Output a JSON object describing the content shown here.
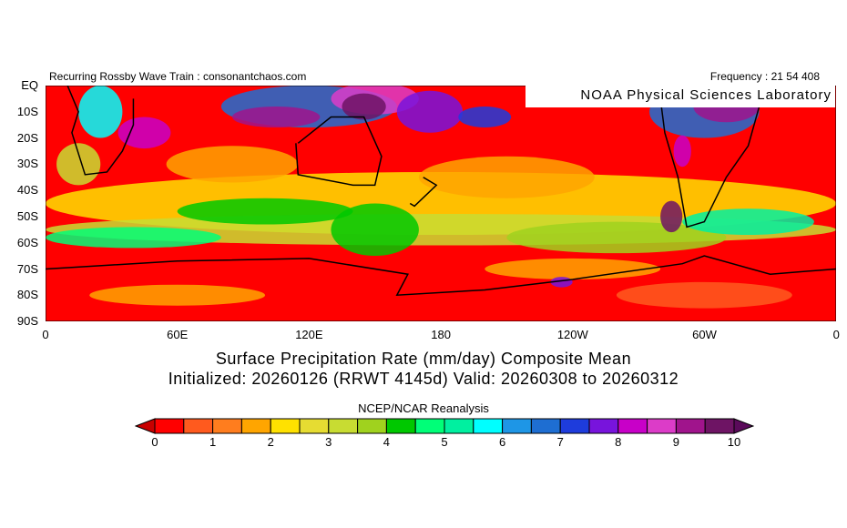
{
  "header": {
    "left": "Recurring Rossby Wave Train : consonantchaos.com",
    "right": "Frequency : 21 54 408"
  },
  "credit": "NOAA Physical Sciences Laboratory",
  "map": {
    "lat_ticks": [
      "EQ",
      "10S",
      "20S",
      "30S",
      "40S",
      "50S",
      "60S",
      "70S",
      "80S",
      "90S"
    ],
    "lon_ticks": [
      "0",
      "60E",
      "120E",
      "180",
      "120W",
      "60W",
      "0"
    ],
    "lat_range": [
      0,
      -90
    ],
    "lon_range": [
      0,
      360
    ],
    "background_color": "#ff0000"
  },
  "title": {
    "line1": "Surface Precipitation Rate (mm/day) Composite Mean",
    "line2": "Initialized: 20260126 (RRWT 4145d) Valid: 20260308 to 20260312"
  },
  "source": "NCEP/NCAR Reanalysis",
  "colorbar": {
    "labels": [
      "0",
      "1",
      "2",
      "3",
      "4",
      "5",
      "6",
      "7",
      "8",
      "9",
      "10"
    ],
    "under_color": "#c80000",
    "over_color": "#5a0a5a",
    "colors": [
      "#ff0000",
      "#ff5a1e",
      "#ff7d1e",
      "#ffa500",
      "#ffe100",
      "#e6dc32",
      "#c8dc32",
      "#a0d21e",
      "#00c800",
      "#00ff78",
      "#00f0a0",
      "#00ffff",
      "#1e96e6",
      "#1e6ed2",
      "#1e3cdc",
      "#7814dc",
      "#c800c8",
      "#dc3cc8",
      "#a0148c",
      "#6e1464"
    ]
  }
}
